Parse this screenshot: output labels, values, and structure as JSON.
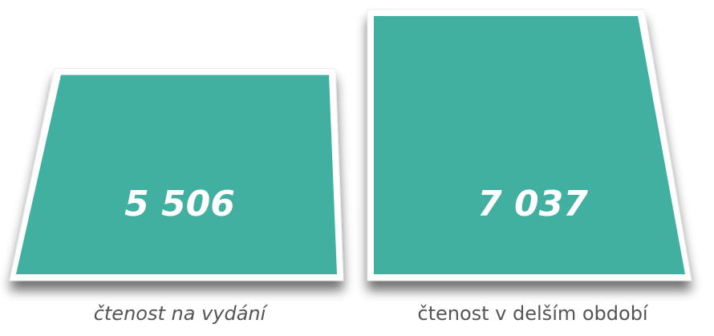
{
  "chart_data": {
    "type": "bar",
    "categories": [
      "čtenost na vydání",
      "čtenost v delším období"
    ],
    "values": [
      5506,
      7037
    ],
    "value_labels": [
      "5 506",
      "7 037"
    ],
    "color": "#42b0a0"
  }
}
